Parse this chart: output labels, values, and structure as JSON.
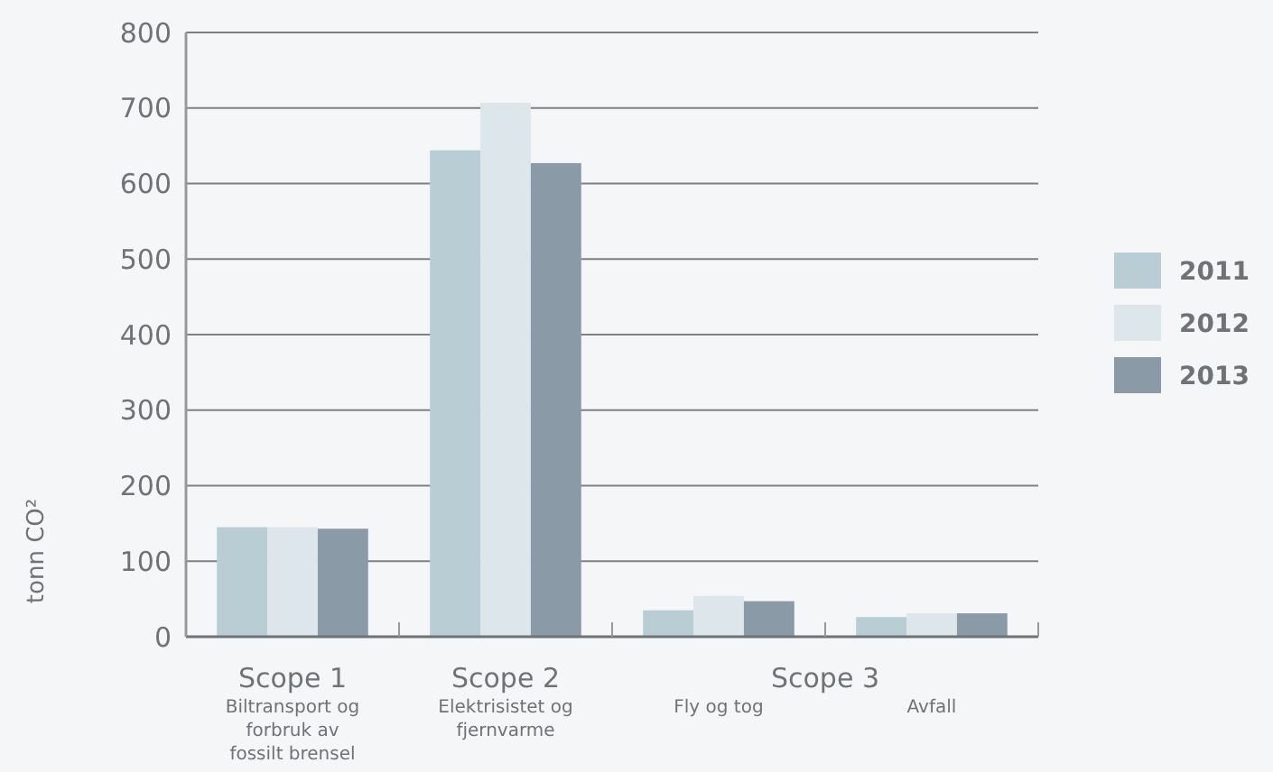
{
  "chart_data": {
    "type": "bar",
    "ylabel": "tonn CO²",
    "categories": [
      "Biltransport og forbruk av fossilt brensel",
      "Elektrisistet og fjernvarme",
      "Fly og tog",
      "Avfall"
    ],
    "series": [
      {
        "name": "2011",
        "color": "#b8cdd4",
        "values": [
          145,
          644,
          35,
          26
        ]
      },
      {
        "name": "2012",
        "color": "#dce6eb",
        "values": [
          145,
          707,
          54,
          31
        ]
      },
      {
        "name": "2013",
        "color": "#8a9aa6",
        "values": [
          143,
          627,
          47,
          31
        ]
      }
    ],
    "ylim": [
      0,
      800
    ],
    "yticks": [
      0,
      100,
      200,
      300,
      400,
      500,
      600,
      700,
      800
    ],
    "grid": "y",
    "legend": "right",
    "annotations": [
      "Scope 1",
      "Scope 2",
      "Scope 3"
    ]
  }
}
